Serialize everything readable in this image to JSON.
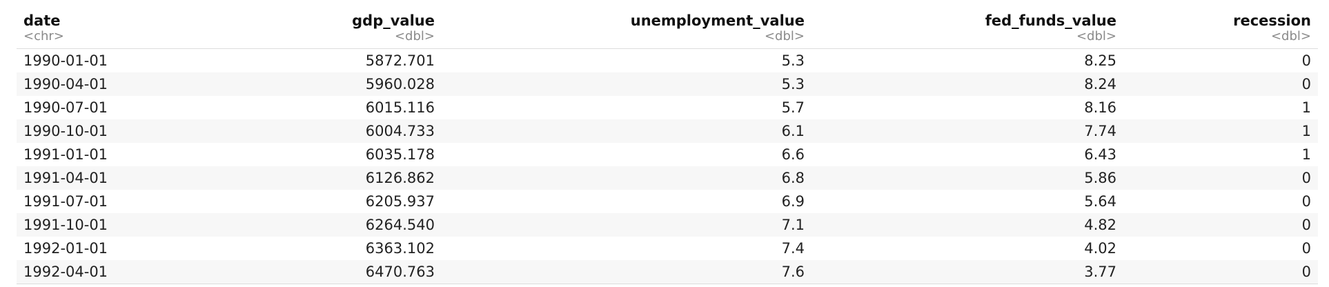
{
  "table": {
    "columns": [
      {
        "name": "date",
        "type": "<chr>"
      },
      {
        "name": "gdp_value",
        "type": "<dbl>"
      },
      {
        "name": "unemployment_value",
        "type": "<dbl>"
      },
      {
        "name": "fed_funds_value",
        "type": "<dbl>"
      },
      {
        "name": "recession",
        "type": "<dbl>"
      }
    ],
    "rows": [
      [
        "1990-01-01",
        "5872.701",
        "5.3",
        "8.25",
        "0"
      ],
      [
        "1990-04-01",
        "5960.028",
        "5.3",
        "8.24",
        "0"
      ],
      [
        "1990-07-01",
        "6015.116",
        "5.7",
        "8.16",
        "1"
      ],
      [
        "1990-10-01",
        "6004.733",
        "6.1",
        "7.74",
        "1"
      ],
      [
        "1991-01-01",
        "6035.178",
        "6.6",
        "6.43",
        "1"
      ],
      [
        "1991-04-01",
        "6126.862",
        "6.8",
        "5.86",
        "0"
      ],
      [
        "1991-07-01",
        "6205.937",
        "6.9",
        "5.64",
        "0"
      ],
      [
        "1991-10-01",
        "6264.540",
        "7.1",
        "4.82",
        "0"
      ],
      [
        "1992-01-01",
        "6363.102",
        "7.4",
        "4.02",
        "0"
      ],
      [
        "1992-04-01",
        "6470.763",
        "7.6",
        "3.77",
        "0"
      ]
    ]
  }
}
